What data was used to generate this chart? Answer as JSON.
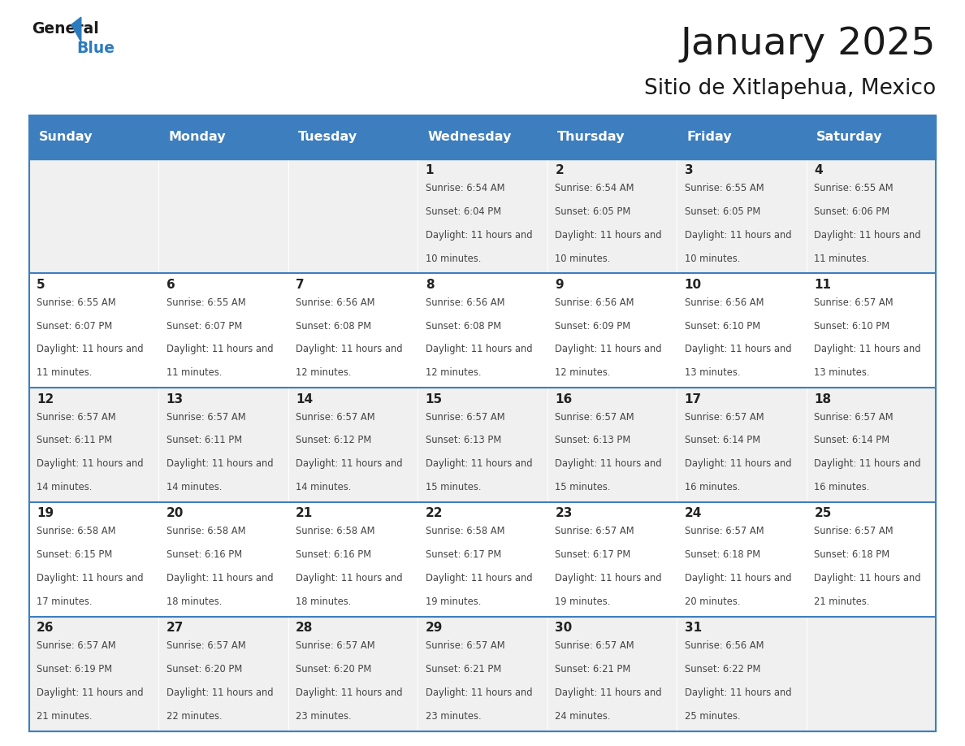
{
  "title": "January 2025",
  "subtitle": "Sitio de Xitlapehua, Mexico",
  "days_of_week": [
    "Sunday",
    "Monday",
    "Tuesday",
    "Wednesday",
    "Thursday",
    "Friday",
    "Saturday"
  ],
  "header_bg": "#3d7ebf",
  "header_text": "#ffffff",
  "row_bg_light": "#f0f0f0",
  "row_bg_white": "#ffffff",
  "border_color": "#3d7ebf",
  "text_color": "#444444",
  "day_num_color": "#222222",
  "calendar_data": [
    [
      {
        "day": null,
        "sunrise": null,
        "sunset": null,
        "daylight": null
      },
      {
        "day": null,
        "sunrise": null,
        "sunset": null,
        "daylight": null
      },
      {
        "day": null,
        "sunrise": null,
        "sunset": null,
        "daylight": null
      },
      {
        "day": 1,
        "sunrise": "6:54 AM",
        "sunset": "6:04 PM",
        "daylight": "11 hours and 10 minutes."
      },
      {
        "day": 2,
        "sunrise": "6:54 AM",
        "sunset": "6:05 PM",
        "daylight": "11 hours and 10 minutes."
      },
      {
        "day": 3,
        "sunrise": "6:55 AM",
        "sunset": "6:05 PM",
        "daylight": "11 hours and 10 minutes."
      },
      {
        "day": 4,
        "sunrise": "6:55 AM",
        "sunset": "6:06 PM",
        "daylight": "11 hours and 11 minutes."
      }
    ],
    [
      {
        "day": 5,
        "sunrise": "6:55 AM",
        "sunset": "6:07 PM",
        "daylight": "11 hours and 11 minutes."
      },
      {
        "day": 6,
        "sunrise": "6:55 AM",
        "sunset": "6:07 PM",
        "daylight": "11 hours and 11 minutes."
      },
      {
        "day": 7,
        "sunrise": "6:56 AM",
        "sunset": "6:08 PM",
        "daylight": "11 hours and 12 minutes."
      },
      {
        "day": 8,
        "sunrise": "6:56 AM",
        "sunset": "6:08 PM",
        "daylight": "11 hours and 12 minutes."
      },
      {
        "day": 9,
        "sunrise": "6:56 AM",
        "sunset": "6:09 PM",
        "daylight": "11 hours and 12 minutes."
      },
      {
        "day": 10,
        "sunrise": "6:56 AM",
        "sunset": "6:10 PM",
        "daylight": "11 hours and 13 minutes."
      },
      {
        "day": 11,
        "sunrise": "6:57 AM",
        "sunset": "6:10 PM",
        "daylight": "11 hours and 13 minutes."
      }
    ],
    [
      {
        "day": 12,
        "sunrise": "6:57 AM",
        "sunset": "6:11 PM",
        "daylight": "11 hours and 14 minutes."
      },
      {
        "day": 13,
        "sunrise": "6:57 AM",
        "sunset": "6:11 PM",
        "daylight": "11 hours and 14 minutes."
      },
      {
        "day": 14,
        "sunrise": "6:57 AM",
        "sunset": "6:12 PM",
        "daylight": "11 hours and 14 minutes."
      },
      {
        "day": 15,
        "sunrise": "6:57 AM",
        "sunset": "6:13 PM",
        "daylight": "11 hours and 15 minutes."
      },
      {
        "day": 16,
        "sunrise": "6:57 AM",
        "sunset": "6:13 PM",
        "daylight": "11 hours and 15 minutes."
      },
      {
        "day": 17,
        "sunrise": "6:57 AM",
        "sunset": "6:14 PM",
        "daylight": "11 hours and 16 minutes."
      },
      {
        "day": 18,
        "sunrise": "6:57 AM",
        "sunset": "6:14 PM",
        "daylight": "11 hours and 16 minutes."
      }
    ],
    [
      {
        "day": 19,
        "sunrise": "6:58 AM",
        "sunset": "6:15 PM",
        "daylight": "11 hours and 17 minutes."
      },
      {
        "day": 20,
        "sunrise": "6:58 AM",
        "sunset": "6:16 PM",
        "daylight": "11 hours and 18 minutes."
      },
      {
        "day": 21,
        "sunrise": "6:58 AM",
        "sunset": "6:16 PM",
        "daylight": "11 hours and 18 minutes."
      },
      {
        "day": 22,
        "sunrise": "6:58 AM",
        "sunset": "6:17 PM",
        "daylight": "11 hours and 19 minutes."
      },
      {
        "day": 23,
        "sunrise": "6:57 AM",
        "sunset": "6:17 PM",
        "daylight": "11 hours and 19 minutes."
      },
      {
        "day": 24,
        "sunrise": "6:57 AM",
        "sunset": "6:18 PM",
        "daylight": "11 hours and 20 minutes."
      },
      {
        "day": 25,
        "sunrise": "6:57 AM",
        "sunset": "6:18 PM",
        "daylight": "11 hours and 21 minutes."
      }
    ],
    [
      {
        "day": 26,
        "sunrise": "6:57 AM",
        "sunset": "6:19 PM",
        "daylight": "11 hours and 21 minutes."
      },
      {
        "day": 27,
        "sunrise": "6:57 AM",
        "sunset": "6:20 PM",
        "daylight": "11 hours and 22 minutes."
      },
      {
        "day": 28,
        "sunrise": "6:57 AM",
        "sunset": "6:20 PM",
        "daylight": "11 hours and 23 minutes."
      },
      {
        "day": 29,
        "sunrise": "6:57 AM",
        "sunset": "6:21 PM",
        "daylight": "11 hours and 23 minutes."
      },
      {
        "day": 30,
        "sunrise": "6:57 AM",
        "sunset": "6:21 PM",
        "daylight": "11 hours and 24 minutes."
      },
      {
        "day": 31,
        "sunrise": "6:56 AM",
        "sunset": "6:22 PM",
        "daylight": "11 hours and 25 minutes."
      },
      {
        "day": null,
        "sunrise": null,
        "sunset": null,
        "daylight": null
      }
    ]
  ]
}
